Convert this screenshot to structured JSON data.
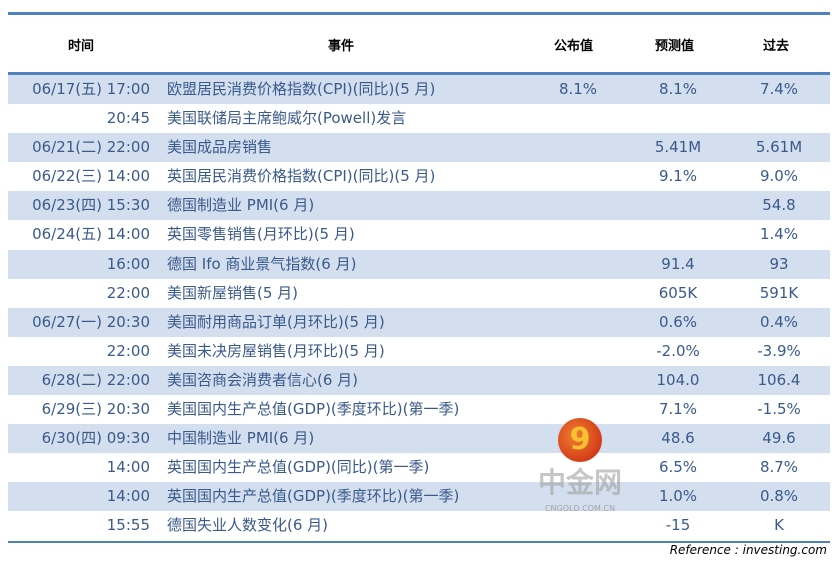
{
  "headers": {
    "time": "时间",
    "event": "事件",
    "actual": "公布值",
    "forecast": "预测值",
    "previous": "过去"
  },
  "rows": [
    {
      "time": "06/17(五) 17:00",
      "event": "欧盟居民消费价格指数(CPI)(同比)(5 月)",
      "actual": "8.1%",
      "forecast": "8.1%",
      "previous": "7.4%"
    },
    {
      "time": "20:45",
      "event": "美国联储局主席鲍威尔(Powell)发言",
      "actual": "",
      "forecast": "",
      "previous": ""
    },
    {
      "time": "06/21(二) 22:00",
      "event": "美国成品房销售",
      "actual": "",
      "forecast": "5.41M",
      "previous": "5.61M"
    },
    {
      "time": "06/22(三) 14:00",
      "event": "英国居民消费价格指数(CPI)(同比)(5 月)",
      "actual": "",
      "forecast": "9.1%",
      "previous": "9.0%"
    },
    {
      "time": "06/23(四) 15:30",
      "event": "德国制造业 PMI(6 月)",
      "actual": "",
      "forecast": "",
      "previous": "54.8"
    },
    {
      "time": "06/24(五) 14:00",
      "event": "英国零售销售(月环比)(5 月)",
      "actual": "",
      "forecast": "",
      "previous": "1.4%"
    },
    {
      "time": "16:00",
      "event": "德国 Ifo 商业景气指数(6 月)",
      "actual": "",
      "forecast": "91.4",
      "previous": "93"
    },
    {
      "time": "22:00",
      "event": "美国新屋销售(5 月)",
      "actual": "",
      "forecast": "605K",
      "previous": "591K"
    },
    {
      "time": "06/27(一) 20:30",
      "event": "美国耐用商品订单(月环比)(5 月)",
      "actual": "",
      "forecast": "0.6%",
      "previous": "0.4%"
    },
    {
      "time": "22:00",
      "event": "美国未决房屋销售(月环比)(5 月)",
      "actual": "",
      "forecast": "-2.0%",
      "previous": "-3.9%"
    },
    {
      "time": "6/28(二) 22:00",
      "event": "美国咨商会消费者信心(6 月)",
      "actual": "",
      "forecast": "104.0",
      "previous": "106.4"
    },
    {
      "time": "6/29(三) 20:30",
      "event": "美国国内生产总值(GDP)(季度环比)(第一季)",
      "actual": "",
      "forecast": "7.1%",
      "previous": "-1.5%"
    },
    {
      "time": "6/30(四) 09:30",
      "event": "中国制造业 PMI(6 月)",
      "actual": "",
      "forecast": "48.6",
      "previous": "49.6"
    },
    {
      "time": "14:00",
      "event": "英国国内生产总值(GDP)(同比)(第一季)",
      "actual": "",
      "forecast": "6.5%",
      "previous": "8.7%"
    },
    {
      "time": "14:00",
      "event": "英国国内生产总值(GDP)(季度环比)(第一季)",
      "actual": "",
      "forecast": "1.0%",
      "previous": "0.8%"
    },
    {
      "time": "15:55",
      "event": "德国失业人数变化(6 月)",
      "actual": "",
      "forecast": "-15",
      "previous": "K"
    }
  ],
  "reference": "Reference : investing.com",
  "watermark": {
    "name": "中金网",
    "domain": "CNGOLD.COM.CN",
    "tagline": "中文财经新媒体"
  },
  "colors": {
    "accent": "#4f81bd",
    "stripe": "#d3deee",
    "text": "#3a5a8c"
  }
}
